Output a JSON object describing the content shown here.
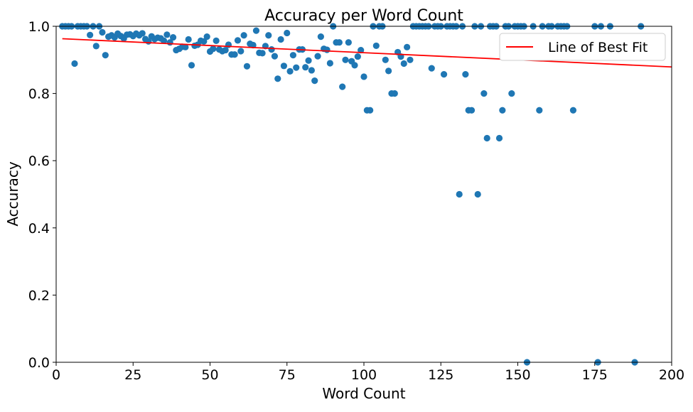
{
  "chart_data": {
    "type": "scatter",
    "title": "Accuracy per Word Count",
    "xlabel": "Word Count",
    "ylabel": "Accuracy",
    "xlim": [
      0,
      200
    ],
    "ylim": [
      0.0,
      1.0
    ],
    "xticks": [
      "0",
      "25",
      "50",
      "75",
      "100",
      "125",
      "150",
      "175",
      "200"
    ],
    "yticks": [
      "0.0",
      "0.2",
      "0.4",
      "0.6",
      "0.8",
      "1.0"
    ],
    "grid": false,
    "legend": {
      "position": "top-right",
      "entries": [
        "Line of Best Fit"
      ]
    },
    "colors": {
      "points": "#1f77b4",
      "fit_line": "#ff0000"
    },
    "fit_line": {
      "name": "Line of Best Fit",
      "x": [
        2,
        200
      ],
      "y": [
        0.963,
        0.879
      ]
    },
    "series": [
      {
        "points": [
          [
            2,
            1.0
          ],
          [
            3,
            1.0
          ],
          [
            4,
            1.0
          ],
          [
            5,
            1.0
          ],
          [
            6,
            0.889
          ],
          [
            7,
            1.0
          ],
          [
            8,
            1.0
          ],
          [
            9,
            1.0
          ],
          [
            10,
            1.0
          ],
          [
            11,
            0.974
          ],
          [
            12,
            1.0
          ],
          [
            13,
            0.941
          ],
          [
            14,
            1.0
          ],
          [
            15,
            0.982
          ],
          [
            16,
            0.914
          ],
          [
            17,
            0.969
          ],
          [
            18,
            0.973
          ],
          [
            19,
            0.967
          ],
          [
            20,
            0.978
          ],
          [
            21,
            0.971
          ],
          [
            22,
            0.964
          ],
          [
            23,
            0.975
          ],
          [
            24,
            0.976
          ],
          [
            25,
            0.971
          ],
          [
            26,
            0.978
          ],
          [
            27,
            0.973
          ],
          [
            28,
            0.979
          ],
          [
            29,
            0.962
          ],
          [
            30,
            0.955
          ],
          [
            31,
            0.97
          ],
          [
            32,
            0.962
          ],
          [
            33,
            0.966
          ],
          [
            34,
            0.964
          ],
          [
            35,
            0.957
          ],
          [
            36,
            0.975
          ],
          [
            37,
            0.952
          ],
          [
            38,
            0.967
          ],
          [
            39,
            0.929
          ],
          [
            40,
            0.933
          ],
          [
            41,
            0.939
          ],
          [
            42,
            0.938
          ],
          [
            43,
            0.961
          ],
          [
            44,
            0.884
          ],
          [
            45,
            0.942
          ],
          [
            46,
            0.945
          ],
          [
            47,
            0.957
          ],
          [
            48,
            0.955
          ],
          [
            49,
            0.969
          ],
          [
            50,
            0.925
          ],
          [
            51,
            0.933
          ],
          [
            52,
            0.957
          ],
          [
            53,
            0.931
          ],
          [
            54,
            0.926
          ],
          [
            55,
            0.929
          ],
          [
            56,
            0.945
          ],
          [
            57,
            0.916
          ],
          [
            58,
            0.916
          ],
          [
            59,
            0.958
          ],
          [
            60,
            0.926
          ],
          [
            61,
            0.973
          ],
          [
            62,
            0.881
          ],
          [
            63,
            0.948
          ],
          [
            64,
            0.944
          ],
          [
            65,
            0.987
          ],
          [
            66,
            0.921
          ],
          [
            67,
            0.92
          ],
          [
            68,
            0.941
          ],
          [
            69,
            0.973
          ],
          [
            70,
            0.931
          ],
          [
            71,
            0.911
          ],
          [
            72,
            0.844
          ],
          [
            73,
            0.961
          ],
          [
            74,
            0.882
          ],
          [
            75,
            0.98
          ],
          [
            76,
            0.866
          ],
          [
            77,
            0.914
          ],
          [
            78,
            0.877
          ],
          [
            79,
            0.931
          ],
          [
            80,
            0.931
          ],
          [
            81,
            0.878
          ],
          [
            82,
            0.898
          ],
          [
            83,
            0.869
          ],
          [
            84,
            0.838
          ],
          [
            85,
            0.911
          ],
          [
            86,
            0.969
          ],
          [
            87,
            0.933
          ],
          [
            88,
            0.93
          ],
          [
            89,
            0.89
          ],
          [
            90,
            1.0
          ],
          [
            91,
            0.952
          ],
          [
            92,
            0.952
          ],
          [
            93,
            0.82
          ],
          [
            94,
            0.9
          ],
          [
            95,
            0.952
          ],
          [
            96,
            0.896
          ],
          [
            97,
            0.884
          ],
          [
            98,
            0.91
          ],
          [
            99,
            0.929
          ],
          [
            100,
            0.85
          ],
          [
            101,
            0.75
          ],
          [
            102,
            0.75
          ],
          [
            103,
            1.0
          ],
          [
            104,
            0.942
          ],
          [
            105,
            1.0
          ],
          [
            106,
            1.0
          ],
          [
            107,
            0.9
          ],
          [
            108,
            0.867
          ],
          [
            109,
            0.8
          ],
          [
            110,
            0.8
          ],
          [
            111,
            0.923
          ],
          [
            112,
            0.91
          ],
          [
            113,
            0.889
          ],
          [
            114,
            0.938
          ],
          [
            115,
            0.9
          ],
          [
            116,
            1.0
          ],
          [
            117,
            1.0
          ],
          [
            118,
            1.0
          ],
          [
            119,
            1.0
          ],
          [
            120,
            1.0
          ],
          [
            121,
            1.0
          ],
          [
            122,
            0.875
          ],
          [
            123,
            1.0
          ],
          [
            124,
            1.0
          ],
          [
            125,
            1.0
          ],
          [
            126,
            0.857
          ],
          [
            127,
            1.0
          ],
          [
            128,
            1.0
          ],
          [
            129,
            1.0
          ],
          [
            130,
            1.0
          ],
          [
            131,
            0.5
          ],
          [
            132,
            1.0
          ],
          [
            133,
            0.857
          ],
          [
            134,
            0.75
          ],
          [
            135,
            0.75
          ],
          [
            136,
            1.0
          ],
          [
            137,
            0.5
          ],
          [
            138,
            1.0
          ],
          [
            139,
            0.8
          ],
          [
            140,
            0.667
          ],
          [
            141,
            1.0
          ],
          [
            142,
            1.0
          ],
          [
            143,
            1.0
          ],
          [
            144,
            0.667
          ],
          [
            145,
            0.75
          ],
          [
            146,
            1.0
          ],
          [
            147,
            1.0
          ],
          [
            148,
            0.8
          ],
          [
            149,
            1.0
          ],
          [
            150,
            1.0
          ],
          [
            151,
            1.0
          ],
          [
            152,
            1.0
          ],
          [
            153,
            0.0
          ],
          [
            155,
            1.0
          ],
          [
            157,
            0.75
          ],
          [
            158,
            1.0
          ],
          [
            160,
            1.0
          ],
          [
            161,
            1.0
          ],
          [
            163,
            1.0
          ],
          [
            164,
            1.0
          ],
          [
            165,
            1.0
          ],
          [
            166,
            1.0
          ],
          [
            168,
            0.75
          ],
          [
            175,
            1.0
          ],
          [
            176,
            0.0
          ],
          [
            177,
            1.0
          ],
          [
            180,
            1.0
          ],
          [
            188,
            0.0
          ],
          [
            190,
            1.0
          ]
        ]
      }
    ]
  }
}
